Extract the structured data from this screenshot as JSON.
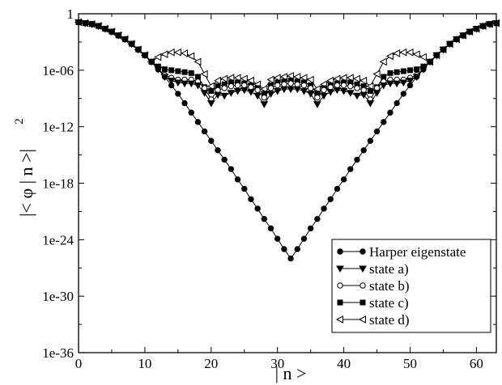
{
  "chart_data": {
    "type": "line",
    "xlabel": "| n >",
    "ylabel": "|< φ | n >|",
    "ylabel_exponent": "2",
    "y_scale": "log",
    "xlim": [
      0,
      63
    ],
    "ylim_exponent": [
      -36,
      0
    ],
    "x_ticks": [
      0,
      10,
      20,
      30,
      40,
      50,
      60
    ],
    "y_ticks": [
      "1e-36",
      "1e-30",
      "1e-24",
      "1e-18",
      "1e-12",
      "1e-06",
      "1"
    ],
    "y_tick_exponents": [
      -36,
      -30,
      -24,
      -18,
      -12,
      -6,
      0
    ],
    "grid": false,
    "legend_position": "bottom-right",
    "series": [
      {
        "name": "Harper eigenstate",
        "marker": "filled-circle",
        "log10_values": [
          -0.9,
          -1.0,
          -1.1,
          -1.3,
          -1.6,
          -1.9,
          -2.3,
          -2.7,
          -3.2,
          -3.8,
          -4.4,
          -5.1,
          -5.9,
          -6.7,
          -7.6,
          -8.5,
          -9.5,
          -10.5,
          -11.5,
          -12.5,
          -13.5,
          -14.5,
          -15.5,
          -16.5,
          -17.6,
          -18.6,
          -19.7,
          -20.7,
          -21.8,
          -22.8,
          -23.9,
          -25.0,
          -26.0,
          -25.0,
          -23.9,
          -22.8,
          -21.8,
          -20.7,
          -19.7,
          -18.6,
          -17.6,
          -16.5,
          -15.5,
          -14.5,
          -13.5,
          -12.5,
          -11.5,
          -10.5,
          -9.5,
          -8.5,
          -7.6,
          -6.7,
          -5.9,
          -5.1,
          -4.4,
          -3.8,
          -3.2,
          -2.7,
          -2.3,
          -1.9,
          -1.6,
          -1.3,
          -1.1,
          -1.0
        ]
      },
      {
        "name": "state a)",
        "marker": "filled-triangle-down",
        "log10_values": [
          -0.9,
          -1.0,
          -1.1,
          -1.3,
          -1.6,
          -1.9,
          -2.3,
          -2.7,
          -3.2,
          -3.8,
          -4.4,
          -5.1,
          -5.9,
          -6.7,
          -7.1,
          -7.3,
          -7.4,
          -7.4,
          -7.6,
          -8.4,
          -9.5,
          -8.6,
          -8.7,
          -8.4,
          -8.2,
          -8.1,
          -8.3,
          -8.7,
          -9.6,
          -8.5,
          -8.2,
          -8.0,
          -8.0,
          -8.0,
          -8.2,
          -8.5,
          -9.6,
          -8.7,
          -8.3,
          -8.1,
          -8.2,
          -8.4,
          -8.7,
          -8.6,
          -9.5,
          -8.4,
          -7.6,
          -7.4,
          -7.4,
          -7.3,
          -7.1,
          -6.7,
          -5.9,
          -5.1,
          -4.4,
          -3.8,
          -3.2,
          -2.7,
          -2.3,
          -1.9,
          -1.6,
          -1.3,
          -1.1,
          -1.0
        ]
      },
      {
        "name": "state b)",
        "marker": "open-circle",
        "log10_values": [
          -0.9,
          -1.0,
          -1.1,
          -1.3,
          -1.6,
          -1.9,
          -2.3,
          -2.7,
          -3.2,
          -3.8,
          -4.4,
          -5.1,
          -5.9,
          -6.5,
          -6.8,
          -7.0,
          -7.0,
          -7.0,
          -7.2,
          -7.9,
          -9.1,
          -8.1,
          -7.9,
          -7.7,
          -7.6,
          -7.6,
          -7.8,
          -8.1,
          -8.9,
          -7.9,
          -7.6,
          -7.5,
          -7.4,
          -7.5,
          -7.6,
          -7.9,
          -8.9,
          -8.1,
          -7.8,
          -7.6,
          -7.6,
          -7.7,
          -7.9,
          -8.1,
          -9.1,
          -7.9,
          -7.2,
          -7.0,
          -7.0,
          -7.0,
          -6.8,
          -6.5,
          -5.9,
          -5.1,
          -4.4,
          -3.8,
          -3.2,
          -2.7,
          -2.3,
          -1.9,
          -1.6,
          -1.3,
          -1.1,
          -1.0
        ]
      },
      {
        "name": "state c)",
        "marker": "filled-square",
        "log10_values": [
          -0.9,
          -1.0,
          -1.1,
          -1.3,
          -1.6,
          -1.9,
          -2.3,
          -2.7,
          -3.2,
          -3.8,
          -4.4,
          -5.1,
          -5.6,
          -5.9,
          -6.0,
          -6.1,
          -6.2,
          -6.3,
          -6.7,
          -7.8,
          -8.2,
          -7.7,
          -7.5,
          -7.3,
          -7.3,
          -7.4,
          -7.6,
          -7.9,
          -8.5,
          -7.6,
          -7.3,
          -7.2,
          -7.1,
          -7.2,
          -7.3,
          -7.6,
          -8.5,
          -7.9,
          -7.6,
          -7.4,
          -7.3,
          -7.3,
          -7.5,
          -7.7,
          -8.2,
          -7.8,
          -6.7,
          -6.3,
          -6.2,
          -6.1,
          -6.0,
          -5.9,
          -5.6,
          -5.1,
          -4.4,
          -3.8,
          -3.2,
          -2.7,
          -2.3,
          -1.9,
          -1.6,
          -1.3,
          -1.1,
          -1.0
        ]
      },
      {
        "name": "state d)",
        "marker": "open-triangle-left",
        "log10_values": [
          -0.9,
          -1.0,
          -1.1,
          -1.3,
          -1.6,
          -1.9,
          -2.3,
          -2.7,
          -3.2,
          -3.8,
          -4.4,
          -5.1,
          -4.6,
          -4.3,
          -4.1,
          -4.1,
          -4.2,
          -4.5,
          -5.1,
          -6.4,
          -7.7,
          -7.1,
          -6.9,
          -6.8,
          -6.8,
          -6.9,
          -7.1,
          -7.5,
          -8.0,
          -7.0,
          -6.8,
          -6.7,
          -6.6,
          -6.7,
          -6.8,
          -7.0,
          -8.0,
          -7.5,
          -7.1,
          -6.9,
          -6.8,
          -6.8,
          -6.9,
          -7.1,
          -7.7,
          -6.4,
          -5.1,
          -4.5,
          -4.2,
          -4.1,
          -4.1,
          -4.3,
          -4.6,
          -5.1,
          -4.4,
          -3.8,
          -3.2,
          -2.7,
          -2.3,
          -1.9,
          -1.6,
          -1.3,
          -1.1,
          -1.0
        ]
      }
    ]
  }
}
